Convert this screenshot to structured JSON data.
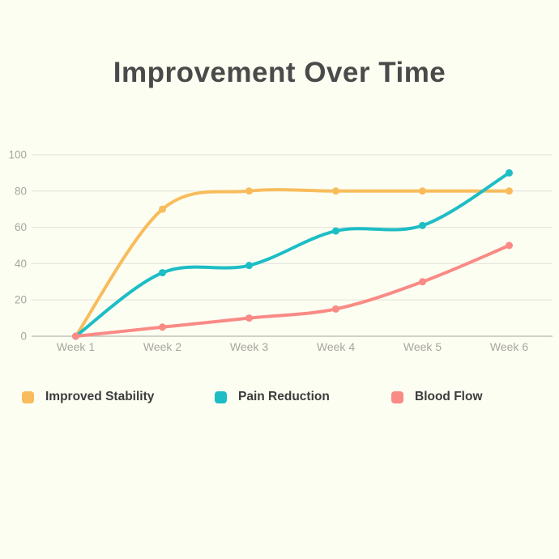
{
  "title": "Improvement Over Time",
  "chart_data": {
    "type": "line",
    "title": "Improvement Over Time",
    "categories": [
      "Week 1",
      "Week 2",
      "Week 3",
      "Week 4",
      "Week 5",
      "Week 6"
    ],
    "series": [
      {
        "name": "Improved Stability",
        "color": "#F8BC5C",
        "values": [
          0,
          70,
          80,
          80,
          80,
          80
        ]
      },
      {
        "name": "Pain Reduction",
        "color": "#1DBDC5",
        "values": [
          0,
          35,
          39,
          58,
          61,
          90
        ]
      },
      {
        "name": "Blood Flow",
        "color": "#FA8A85",
        "values": [
          0,
          5,
          10,
          15,
          30,
          50
        ]
      }
    ],
    "yticks": [
      0,
      20,
      40,
      60,
      80,
      100
    ],
    "ylim": [
      0,
      100
    ],
    "grid": "horizontal",
    "legend_position": "bottom",
    "line_style": "smooth",
    "markers": true
  },
  "colors": {
    "background": "#FDFEF2",
    "title_text": "#4A4A4A",
    "axis_text": "#A6A69E",
    "gridline": "#E7E7DF",
    "axis_line": "#C2C2BA",
    "legend_text": "#3C3C3C"
  }
}
